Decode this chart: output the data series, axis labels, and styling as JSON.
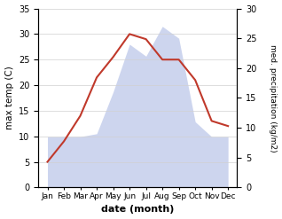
{
  "months": [
    "Jan",
    "Feb",
    "Mar",
    "Apr",
    "May",
    "Jun",
    "Jul",
    "Aug",
    "Sep",
    "Oct",
    "Nov",
    "Dec"
  ],
  "temperature": [
    5.0,
    9.0,
    14.0,
    21.5,
    25.5,
    30.0,
    29.0,
    25.0,
    25.0,
    21.0,
    13.0,
    12.0
  ],
  "precipitation": [
    8.5,
    8.5,
    8.5,
    9.0,
    16.0,
    24.0,
    22.0,
    27.0,
    25.0,
    11.0,
    8.5,
    8.5
  ],
  "temp_color": "#c0392b",
  "precip_color": "#b8c4e8",
  "xlabel": "date (month)",
  "ylabel_left": "max temp (C)",
  "ylabel_right": "med. precipitation (kg/m2)",
  "ylim_left": [
    0,
    35
  ],
  "ylim_right": [
    0,
    30
  ],
  "yticks_left": [
    0,
    5,
    10,
    15,
    20,
    25,
    30,
    35
  ],
  "yticks_right": [
    0,
    5,
    10,
    15,
    20,
    25,
    30
  ],
  "background_color": "#ffffff",
  "grid_color": "#d0d0d0"
}
